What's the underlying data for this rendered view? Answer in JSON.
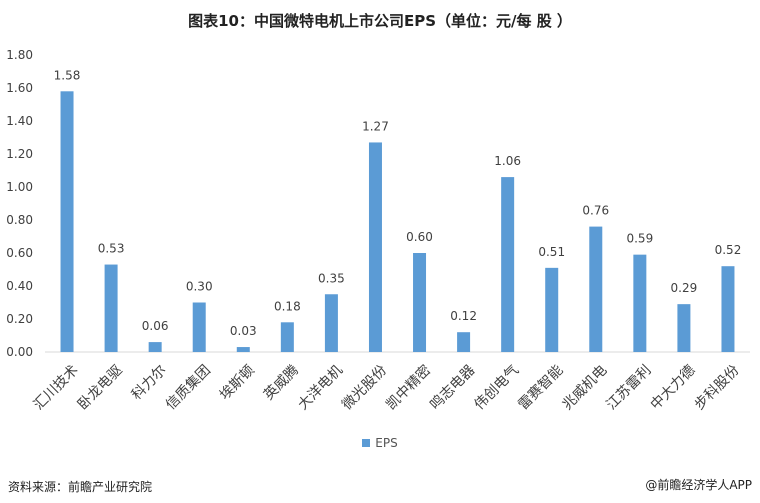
{
  "title": "图表10：中国微特电机上市公司EPS（单位：元/每 股 ）",
  "footer": {
    "source": "资料来源：前瞻产业研究院",
    "brand": "@前瞻经济学人APP"
  },
  "colors": {
    "bar": "#5b9bd5",
    "grid": "#d9d9d9"
  },
  "chart_data": {
    "type": "bar",
    "title": "图表10：中国微特电机上市公司EPS（单位：元/每 股 ）",
    "categories": [
      "汇川技术",
      "卧龙电驱",
      "科力尔",
      "信质集团",
      "埃斯顿",
      "英威腾",
      "大洋电机",
      "微光股份",
      "凯中精密",
      "鸣志电器",
      "伟创电气",
      "雷赛智能",
      "兆威机电",
      "江苏雷利",
      "中大力德",
      "步科股份"
    ],
    "series": [
      {
        "name": "EPS",
        "values": [
          1.58,
          0.53,
          0.06,
          0.3,
          0.03,
          0.18,
          0.35,
          1.27,
          0.6,
          0.12,
          1.06,
          0.51,
          0.76,
          0.59,
          0.29,
          0.52
        ]
      }
    ],
    "data_labels": [
      "1.58",
      "0.53",
      "0.06",
      "0.30",
      "0.03",
      "0.18",
      "0.35",
      "1.27",
      "0.60",
      "0.12",
      "1.06",
      "0.51",
      "0.76",
      "0.59",
      "0.29",
      "0.52"
    ],
    "ylim": [
      0,
      1.8
    ],
    "yticks": [
      "0.00",
      "0.20",
      "0.40",
      "0.60",
      "0.80",
      "1.00",
      "1.20",
      "1.40",
      "1.60",
      "1.80"
    ],
    "grid": false,
    "legend": "bottom",
    "xlabel": "",
    "ylabel": ""
  }
}
